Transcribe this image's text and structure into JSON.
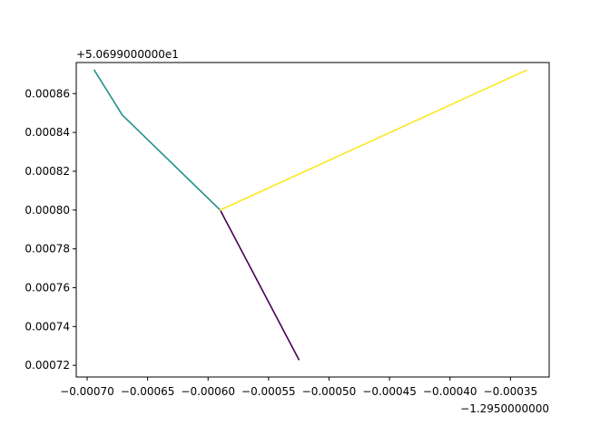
{
  "chart_data": {
    "type": "line",
    "title": "",
    "xlabel": "",
    "ylabel": "",
    "x_offset_label": "−1.2950000000",
    "y_offset_label": "+5.0699000000e1",
    "xlim": [
      -0.000709,
      -0.000318
    ],
    "ylim": [
      0.000714,
      0.000876
    ],
    "x_ticks": [
      -0.0007,
      -0.00065,
      -0.0006,
      -0.00055,
      -0.0005,
      -0.00045,
      -0.0004,
      -0.00035
    ],
    "x_tick_labels": [
      "−0.00070",
      "−0.00065",
      "−0.00060",
      "−0.00055",
      "−0.00050",
      "−0.00045",
      "−0.00040",
      "−0.00035"
    ],
    "y_ticks": [
      0.00072,
      0.00074,
      0.00076,
      0.00078,
      0.0008,
      0.00082,
      0.00084,
      0.00086
    ],
    "y_tick_labels": [
      "0.00072",
      "0.00074",
      "0.00076",
      "0.00078",
      "0.00080",
      "0.00082",
      "0.00084",
      "0.00086"
    ],
    "grid": false,
    "legend": "none",
    "series": [
      {
        "color": "#440154",
        "x": [
          -0.00059,
          -0.000525
        ],
        "y": [
          0.0008,
          0.000723
        ]
      },
      {
        "color": "#21918c",
        "x": [
          -0.00059,
          -0.000671,
          -0.000694
        ],
        "y": [
          0.0008,
          0.000849,
          0.000872
        ]
      },
      {
        "color": "#fde725",
        "x": [
          -0.00059,
          -0.000337
        ],
        "y": [
          0.0008,
          0.000872
        ]
      }
    ]
  }
}
